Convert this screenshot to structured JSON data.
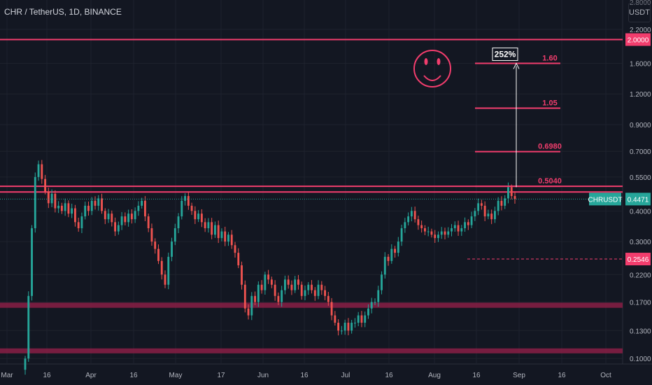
{
  "header": {
    "title": "CHR / TetherUS, 1D, BINANCE"
  },
  "price_axis": {
    "unit": "USDT"
  },
  "colors": {
    "up": "#26a69a",
    "down": "#ef5350",
    "accent": "#f23d6d",
    "zone": "#8a1f45",
    "background": "#131722"
  },
  "icons": {
    "smiley": "smiley-face-icon"
  },
  "chart_data": {
    "type": "candlestick",
    "scale": "log",
    "symbol": "CHRUSDT",
    "x_ticks": [
      "Mar",
      "16",
      "Apr",
      "16",
      "May",
      "17",
      "Jun",
      "16",
      "Jul",
      "16",
      "Aug",
      "16",
      "Sep",
      "16",
      "Oct"
    ],
    "y_ticks": [
      2.2,
      1.6,
      1.2,
      0.9,
      0.7,
      0.55,
      0.4,
      0.3,
      0.22,
      0.17,
      0.13,
      0.1
    ],
    "y_tick_labels": [
      "2.2000",
      "1.6000",
      "1.2000",
      "0.9000",
      "0.7000",
      "0.5500",
      "0.4000",
      "0.3000",
      "0.2200",
      "0.1700",
      "0.1300",
      "0.1000"
    ],
    "y_top_partial_label": "2.8000",
    "ylim": [
      0.095,
      2.9
    ],
    "last_price": {
      "value": 0.4471,
      "label": "0.4471",
      "tag": "CHRUSDT"
    },
    "level_2_label": {
      "value": 0.2546,
      "label": "0.2546"
    },
    "resistance_2_label": {
      "value": 2.0,
      "label": "2.0000"
    },
    "targets": [
      {
        "value": 1.6,
        "label": "1.60"
      },
      {
        "value": 1.05,
        "label": "1.05"
      },
      {
        "value": 0.698,
        "label": "0.6980"
      },
      {
        "value": 0.504,
        "label": "0.5040"
      }
    ],
    "breakout_lines": [
      0.504,
      0.478
    ],
    "support_zones": [
      [
        0.161,
        0.169
      ],
      [
        0.105,
        0.11
      ]
    ],
    "gain_label": "252%",
    "closes": [
      0.1,
      0.18,
      0.34,
      0.55,
      0.62,
      0.54,
      0.48,
      0.43,
      0.47,
      0.41,
      0.42,
      0.4,
      0.43,
      0.39,
      0.41,
      0.36,
      0.34,
      0.38,
      0.42,
      0.4,
      0.44,
      0.42,
      0.45,
      0.4,
      0.37,
      0.39,
      0.36,
      0.33,
      0.35,
      0.38,
      0.36,
      0.39,
      0.37,
      0.4,
      0.42,
      0.44,
      0.38,
      0.34,
      0.3,
      0.28,
      0.25,
      0.22,
      0.2,
      0.26,
      0.3,
      0.34,
      0.38,
      0.44,
      0.46,
      0.42,
      0.4,
      0.37,
      0.39,
      0.36,
      0.34,
      0.36,
      0.32,
      0.35,
      0.31,
      0.33,
      0.3,
      0.32,
      0.29,
      0.27,
      0.24,
      0.2,
      0.16,
      0.15,
      0.18,
      0.17,
      0.2,
      0.19,
      0.22,
      0.21,
      0.2,
      0.18,
      0.17,
      0.19,
      0.21,
      0.2,
      0.19,
      0.21,
      0.2,
      0.18,
      0.19,
      0.2,
      0.19,
      0.18,
      0.2,
      0.19,
      0.18,
      0.17,
      0.15,
      0.14,
      0.13,
      0.13,
      0.14,
      0.13,
      0.14,
      0.14,
      0.15,
      0.14,
      0.15,
      0.16,
      0.17,
      0.17,
      0.19,
      0.22,
      0.26,
      0.25,
      0.28,
      0.27,
      0.3,
      0.34,
      0.36,
      0.38,
      0.4,
      0.37,
      0.35,
      0.34,
      0.33,
      0.33,
      0.32,
      0.31,
      0.32,
      0.33,
      0.32,
      0.33,
      0.34,
      0.35,
      0.33,
      0.34,
      0.36,
      0.35,
      0.38,
      0.4,
      0.43,
      0.42,
      0.38,
      0.39,
      0.37,
      0.4,
      0.44,
      0.42,
      0.45,
      0.5,
      0.46,
      0.4471
    ]
  }
}
